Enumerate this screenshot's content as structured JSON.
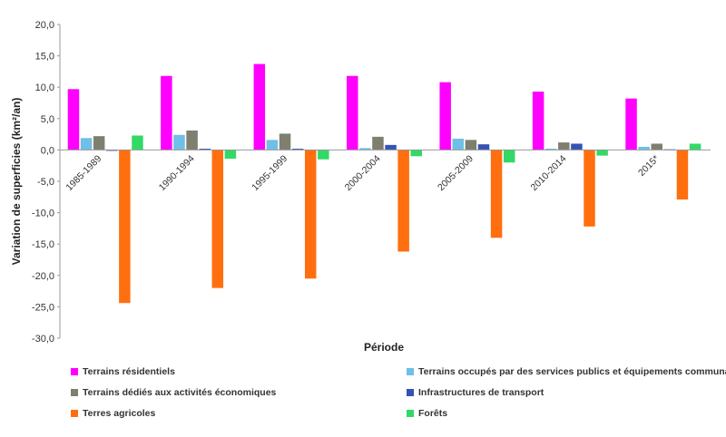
{
  "chart_data": {
    "type": "bar",
    "ylabel": "Variation de superficies (km²/an)",
    "xlabel": "Période",
    "ylim": [
      -30,
      20
    ],
    "y_ticks": [
      "20,0",
      "15,0",
      "10,0",
      "5,0",
      "0,0",
      "-5,0",
      "-10,0",
      "-15,0",
      "-20,0",
      "-25,0",
      "-30,0"
    ],
    "grid": false,
    "legend_position": "bottom",
    "categories": [
      "1985-1989",
      "1990-1994",
      "1995-1999",
      "2000-2004",
      "2005-2009",
      "2010-2014",
      "2015*"
    ],
    "series": [
      {
        "name": "Terrains résidentiels",
        "color": "#ff00ff",
        "values": [
          9.7,
          11.8,
          13.7,
          11.8,
          10.8,
          9.3,
          8.2
        ]
      },
      {
        "name": "Terrains occupés par des services publics et équipements communautaires",
        "color": "#6fbfe6",
        "values": [
          1.9,
          2.4,
          1.6,
          0.3,
          1.8,
          0.2,
          0.5
        ]
      },
      {
        "name": "Terrains dédiés aux activités économiques",
        "color": "#7f7f6f",
        "values": [
          2.2,
          3.1,
          2.6,
          2.1,
          1.6,
          1.2,
          1.0
        ]
      },
      {
        "name": "Infrastructures de transport",
        "color": "#3652b5",
        "values": [
          -0.1,
          0.2,
          0.2,
          0.8,
          0.9,
          1.0,
          0.1
        ]
      },
      {
        "name": "Terres agricoles",
        "color": "#ff6f0f",
        "values": [
          -24.4,
          -22.0,
          -20.5,
          -16.2,
          -14.0,
          -12.2,
          -7.9
        ]
      },
      {
        "name": "Forêts",
        "color": "#33d966",
        "values": [
          2.3,
          -1.4,
          -1.5,
          -1.0,
          -2.0,
          -0.9,
          1.0
        ]
      }
    ]
  }
}
